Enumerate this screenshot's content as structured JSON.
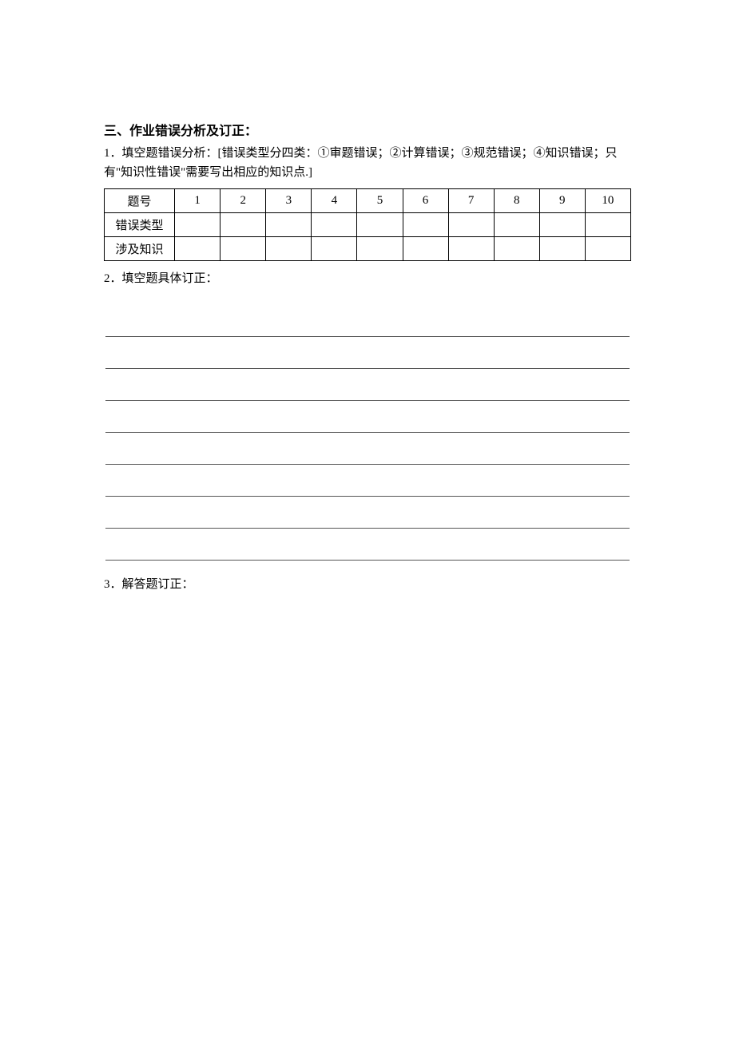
{
  "section": {
    "title": "三、作业错误分析及订正：",
    "item1": {
      "label": "1．填空题错误分析：",
      "note": "[错误类型分四类：①审题错误；②计算错误；③规范错误；④知识错误；只有\"知识性错误\"需要写出相应的知识点.]"
    },
    "item2": {
      "label": "2．填空题具体订正："
    },
    "item3": {
      "label": "3．解答题订正："
    }
  },
  "table": {
    "row_headers": [
      "题号",
      "错误类型",
      "涉及知识"
    ],
    "columns": [
      "1",
      "2",
      "3",
      "4",
      "5",
      "6",
      "7",
      "8",
      "9",
      "10"
    ]
  },
  "styling": {
    "background_color": "#ffffff",
    "text_color": "#000000",
    "border_color": "#000000",
    "line_color": "#555555",
    "title_fontsize": 16,
    "body_fontsize": 15,
    "font_family": "SimSun",
    "blank_lines_count": 8
  }
}
